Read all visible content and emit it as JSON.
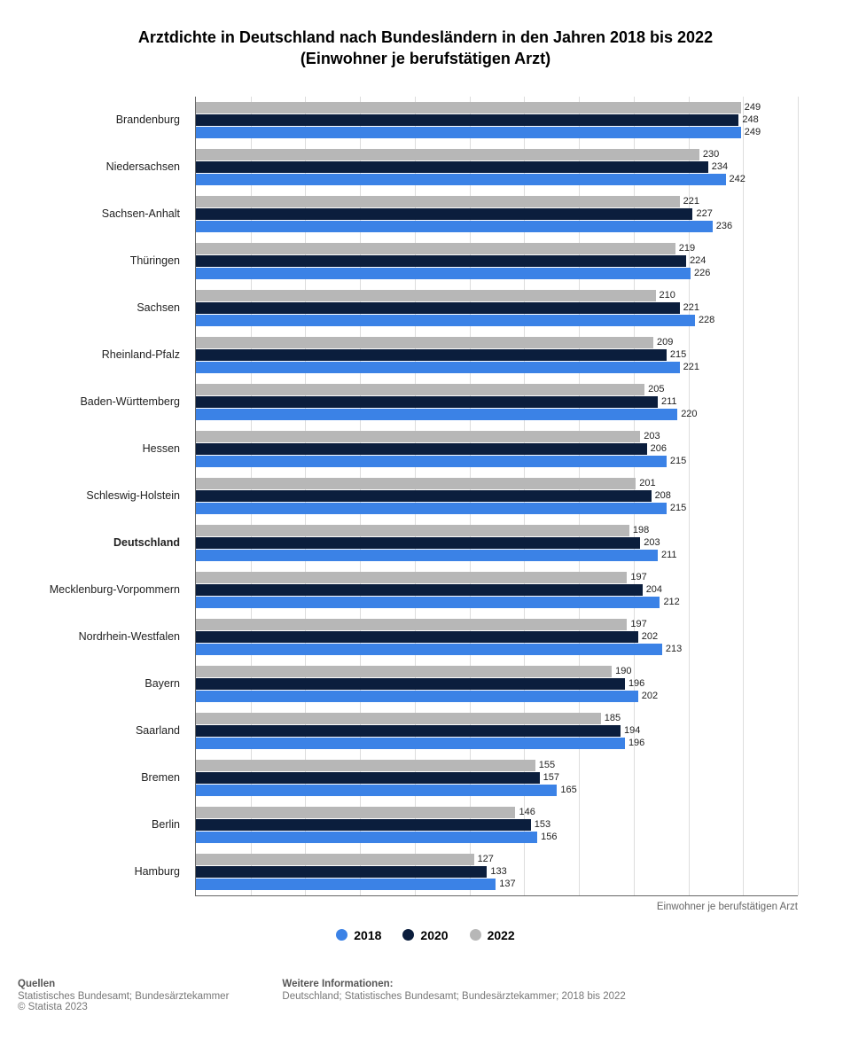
{
  "title_line1": "Arztdichte in Deutschland nach Bundesländern in den Jahren 2018 bis 2022",
  "title_line2": "(Einwohner je berufstätigen Arzt)",
  "x_axis_label": "Einwohner je berufstätigen Arzt",
  "xlim_max": 275,
  "grid_step": 25,
  "series": [
    {
      "key": "y2022",
      "label": "2022",
      "color": "#B7B7B7"
    },
    {
      "key": "y2020",
      "label": "2020",
      "color": "#0B1E3D"
    },
    {
      "key": "y2018",
      "label": "2018",
      "color": "#3B82E6"
    }
  ],
  "legend_order": [
    "y2018",
    "y2020",
    "y2022"
  ],
  "categories": [
    {
      "label": "Brandenburg",
      "bold": false,
      "y2022": 249,
      "y2020": 248,
      "y2018": 249
    },
    {
      "label": "Niedersachsen",
      "bold": false,
      "y2022": 230,
      "y2020": 234,
      "y2018": 242
    },
    {
      "label": "Sachsen-Anhalt",
      "bold": false,
      "y2022": 221,
      "y2020": 227,
      "y2018": 236
    },
    {
      "label": "Thüringen",
      "bold": false,
      "y2022": 219,
      "y2020": 224,
      "y2018": 226
    },
    {
      "label": "Sachsen",
      "bold": false,
      "y2022": 210,
      "y2020": 221,
      "y2018": 228
    },
    {
      "label": "Rheinland-Pfalz",
      "bold": false,
      "y2022": 209,
      "y2020": 215,
      "y2018": 221
    },
    {
      "label": "Baden-Württemberg",
      "bold": false,
      "y2022": 205,
      "y2020": 211,
      "y2018": 220
    },
    {
      "label": "Hessen",
      "bold": false,
      "y2022": 203,
      "y2020": 206,
      "y2018": 215
    },
    {
      "label": "Schleswig-Holstein",
      "bold": false,
      "y2022": 201,
      "y2020": 208,
      "y2018": 215
    },
    {
      "label": "Deutschland",
      "bold": true,
      "y2022": 198,
      "y2020": 203,
      "y2018": 211
    },
    {
      "label": "Mecklenburg-Vorpommern",
      "bold": false,
      "y2022": 197,
      "y2020": 204,
      "y2018": 212
    },
    {
      "label": "Nordrhein-Westfalen",
      "bold": false,
      "y2022": 197,
      "y2020": 202,
      "y2018": 213
    },
    {
      "label": "Bayern",
      "bold": false,
      "y2022": 190,
      "y2020": 196,
      "y2018": 202
    },
    {
      "label": "Saarland",
      "bold": false,
      "y2022": 185,
      "y2020": 194,
      "y2018": 196
    },
    {
      "label": "Bremen",
      "bold": false,
      "y2022": 155,
      "y2020": 157,
      "y2018": 165
    },
    {
      "label": "Berlin",
      "bold": false,
      "y2022": 146,
      "y2020": 153,
      "y2018": 156
    },
    {
      "label": "Hamburg",
      "bold": false,
      "y2022": 127,
      "y2020": 133,
      "y2018": 137
    }
  ],
  "footer": {
    "sources_heading": "Quellen",
    "sources_text": "Statistisches Bundesamt; Bundesärztekammer",
    "copyright": "© Statista 2023",
    "more_heading": "Weitere Informationen:",
    "more_text": "Deutschland; Statistisches Bundesamt; Bundesärztekammer; 2018 bis 2022"
  }
}
